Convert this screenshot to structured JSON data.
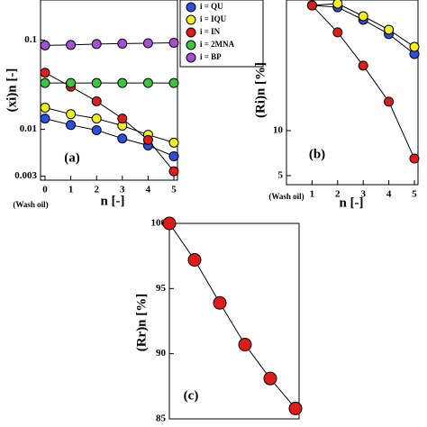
{
  "chart_data": [
    {
      "type": "line",
      "annotation": "(a)",
      "x_label": "n [-]",
      "y_label": "(xi)n [-]",
      "x_note": "(Wash oil)",
      "log_y": true,
      "xlim": [
        0,
        5
      ],
      "ylim": [
        0.0027,
        0.28
      ],
      "xticks": [
        0,
        1,
        2,
        3,
        4,
        5
      ],
      "yticks": [
        0.003,
        0.01,
        0.1
      ],
      "x": [
        0,
        1,
        2,
        3,
        4,
        5
      ],
      "series": [
        {
          "name": "i = QU",
          "color": "#2b4fe0",
          "values": [
            0.0132,
            0.0112,
            0.0098,
            0.0079,
            0.0066,
            0.005
          ]
        },
        {
          "name": "i = IQU",
          "color": "#f2ee1c",
          "values": [
            0.0175,
            0.0148,
            0.0132,
            0.011,
            0.0087,
            0.0071
          ]
        },
        {
          "name": "i = IN",
          "color": "#e01b1b",
          "values": [
            0.043,
            0.03,
            0.0206,
            0.0132,
            0.0076,
            0.0034
          ]
        },
        {
          "name": "i = 2MNA",
          "color": "#3cc43c",
          "values": [
            0.033,
            0.033,
            0.033,
            0.033,
            0.033,
            0.033
          ]
        },
        {
          "name": "i = BP",
          "color": "#a64fd6",
          "values": [
            0.087,
            0.088,
            0.09,
            0.091,
            0.092,
            0.093
          ]
        }
      ]
    },
    {
      "type": "line",
      "annotation": "(b)",
      "x_label": "n [-]",
      "y_label": "(Ri)n [%]",
      "x_note": "(Wash oil)",
      "log_y": true,
      "xlim": [
        0,
        5
      ],
      "ylim": [
        4.35,
        74.7
      ],
      "xticks": [
        1,
        2,
        3,
        4,
        5
      ],
      "yticks": [
        5,
        10
      ],
      "x": [
        1,
        2,
        3,
        4,
        5
      ],
      "series": [
        {
          "name": "i = QU",
          "color": "#2b4fe0",
          "values": [
            68.7,
            66.8,
            55.1,
            44.2,
            32.5
          ]
        },
        {
          "name": "i = IQU",
          "color": "#f2ee1c",
          "values": [
            68.7,
            70.6,
            58.2,
            47.3,
            36.3
          ]
        },
        {
          "name": "i = IN",
          "color": "#e01b1b",
          "values": [
            68.7,
            45.4,
            27.2,
            15.6,
            6.5
          ]
        }
      ]
    },
    {
      "type": "line",
      "annotation": "(c)",
      "y_label": "(Rr)n [%]",
      "log_y": false,
      "xlim": [
        0,
        5
      ],
      "ylim": [
        85,
        100
      ],
      "yticks": [
        85,
        90,
        95,
        100
      ],
      "x": [
        0,
        1,
        2,
        3,
        4,
        5
      ],
      "series": [
        {
          "color": "#e01b1b",
          "values": [
            100,
            97.2,
            93.9,
            90.7,
            88.1,
            85.8
          ]
        }
      ]
    }
  ]
}
